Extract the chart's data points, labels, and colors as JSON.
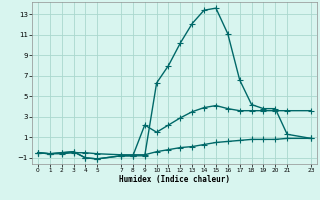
{
  "xlabel": "Humidex (Indice chaleur)",
  "bg_color": "#d8f5ef",
  "grid_color": "#aad8ce",
  "line_color": "#006868",
  "xlim": [
    -0.5,
    23.5
  ],
  "ylim": [
    -1.6,
    14.2
  ],
  "yticks": [
    -1,
    1,
    3,
    5,
    7,
    9,
    11,
    13
  ],
  "xticks": [
    0,
    1,
    2,
    3,
    4,
    5,
    7,
    8,
    9,
    10,
    11,
    12,
    13,
    14,
    15,
    16,
    17,
    18,
    19,
    20,
    21,
    23
  ],
  "series1_x": [
    0,
    1,
    2,
    3,
    4,
    5,
    7,
    8,
    9,
    10,
    11,
    12,
    13,
    14,
    15,
    16,
    17,
    18,
    19,
    20,
    21,
    23
  ],
  "series1_y": [
    -0.5,
    -0.6,
    -0.6,
    -0.5,
    -0.5,
    -0.6,
    -0.7,
    -0.7,
    -0.7,
    -0.4,
    -0.2,
    0.0,
    0.1,
    0.3,
    0.5,
    0.6,
    0.7,
    0.8,
    0.8,
    0.8,
    0.9,
    0.9
  ],
  "series2_x": [
    0,
    1,
    2,
    3,
    4,
    5,
    7,
    8,
    9,
    10,
    11,
    12,
    13,
    14,
    15,
    16,
    17,
    18,
    19,
    20,
    21,
    23
  ],
  "series2_y": [
    -0.5,
    -0.6,
    -0.5,
    -0.4,
    -1.0,
    -1.1,
    -0.8,
    -0.8,
    2.2,
    1.5,
    2.2,
    2.9,
    3.5,
    3.9,
    4.1,
    3.8,
    3.6,
    3.6,
    3.6,
    3.6,
    3.6,
    3.6
  ],
  "series3_x": [
    0,
    1,
    2,
    3,
    4,
    5,
    7,
    8,
    9,
    10,
    11,
    12,
    13,
    14,
    15,
    16,
    17,
    18,
    19,
    20,
    21,
    23
  ],
  "series3_y": [
    -0.5,
    -0.6,
    -0.5,
    -0.4,
    -1.0,
    -1.1,
    -0.8,
    -0.8,
    -0.8,
    6.3,
    8.0,
    10.2,
    12.1,
    13.4,
    13.6,
    11.1,
    6.6,
    4.2,
    3.8,
    3.8,
    1.3,
    0.9
  ],
  "markersize": 2.5,
  "linewidth": 1.0
}
